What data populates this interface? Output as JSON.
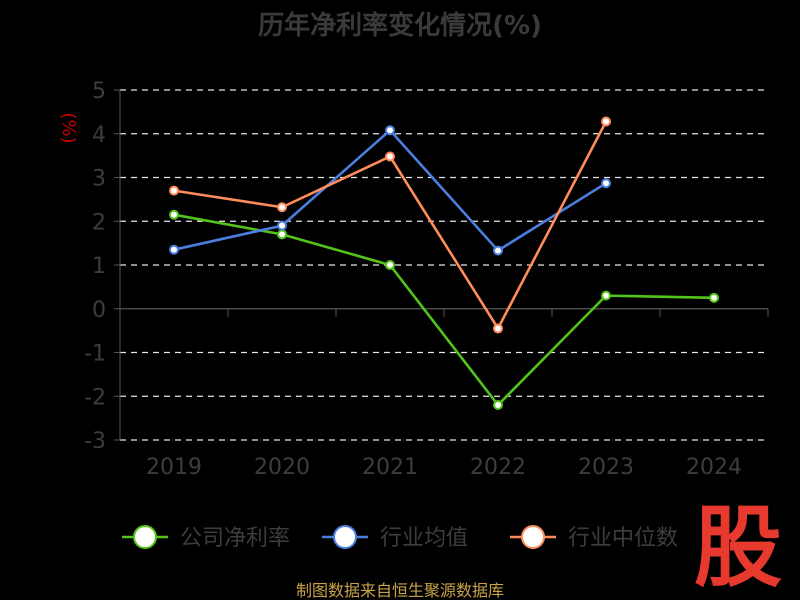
{
  "chart_data": {
    "type": "line",
    "title": "历年净利率变化情况(%)",
    "ylabel": "(%)",
    "categories": [
      "2019",
      "2020",
      "2021",
      "2022",
      "2023",
      "2024"
    ],
    "ylim": [
      -3,
      5
    ],
    "yticks": [
      5,
      4,
      3,
      2,
      1,
      0,
      -1,
      -2,
      -3
    ],
    "grid": true,
    "legend_position": "bottom",
    "series": [
      {
        "name": "公司净利率",
        "color": "#52c41a",
        "values": [
          2.15,
          1.7,
          1.0,
          -2.2,
          0.3,
          0.25
        ]
      },
      {
        "name": "行业均值",
        "color": "#4a7fe0",
        "values": [
          1.35,
          1.9,
          4.08,
          1.33,
          2.87,
          null
        ]
      },
      {
        "name": "行业中位数",
        "color": "#ff8c5a",
        "values": [
          2.7,
          2.32,
          3.48,
          -0.45,
          4.28,
          null
        ]
      }
    ]
  },
  "source": "制图数据来自恒生聚源数据库",
  "logo_text": "股"
}
